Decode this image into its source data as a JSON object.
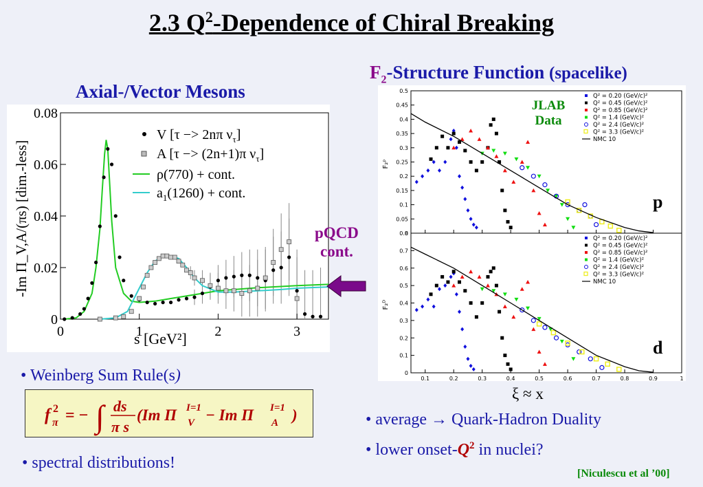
{
  "title": {
    "pre": "2.3 Q",
    "sup": "2",
    "post": "-Dependence of Chiral Breaking"
  },
  "left_heading": "Axial-/Vector Mesons",
  "right_heading": {
    "f": "F",
    "sub": "2",
    "rest": "-Structure Function",
    "paren": "(spacelike)"
  },
  "pqcd_label": {
    "line1": "pQCD",
    "line2": "cont."
  },
  "xi_label": "ξ ≈ x",
  "bullets": {
    "weinberg": "Weinberg Sum Rule(s",
    "weinberg_close": ")",
    "spectral": "spectral distributions!",
    "average": "average → Quark-Hadron Duality",
    "lower_pre": "lower onset-",
    "lower_q": "Q",
    "lower_sup": "2",
    "lower_post": " in nuclei?"
  },
  "formula": {
    "f": "f",
    "sub": "π",
    "sup": "2",
    "eq": "= −",
    "int": "∫",
    "num": "ds",
    "den": "π s",
    "body1": "(Im Π",
    "v": "V",
    "iso": "I=1",
    "minus": " − Im Π",
    "a": "A",
    "close": ")"
  },
  "citation": "[Niculescu et al ’00]",
  "chart_data": [
    {
      "type": "line",
      "xlabel": "s [GeV²]",
      "ylabel": "-Im Π_V,A/(πs) [dim.-less]",
      "xlim": [
        0,
        3.4
      ],
      "ylim": [
        0,
        0.08
      ],
      "xticks": [
        "0",
        "1",
        "2",
        "3"
      ],
      "yticks": [
        "0",
        "0.02",
        "0.04",
        "0.06",
        "0.08"
      ],
      "legend": [
        {
          "label": "V [τ −> 2nπ ν",
          "sub": "τ",
          "end": "]",
          "marker": "dot"
        },
        {
          "label": "A [τ −> (2n+1)π ν",
          "sub": "τ",
          "end": "]",
          "marker": "square"
        },
        {
          "label": "ρ(770)   + cont.",
          "marker": "green-line"
        },
        {
          "label": "a",
          "sub": "1",
          "end": "(1260) + cont.",
          "marker": "cyan-line"
        }
      ],
      "series": [
        {
          "name": "ρ(770) + cont.",
          "color": "#22cc22",
          "x": [
            0.05,
            0.2,
            0.3,
            0.4,
            0.45,
            0.5,
            0.53,
            0.56,
            0.58,
            0.6,
            0.62,
            0.65,
            0.7,
            0.8,
            0.9,
            1.0,
            1.2,
            1.5,
            1.8,
            2.0,
            2.5,
            3.0,
            3.4
          ],
          "y": [
            0,
            0.0005,
            0.003,
            0.01,
            0.02,
            0.035,
            0.05,
            0.064,
            0.0695,
            0.066,
            0.055,
            0.038,
            0.02,
            0.01,
            0.007,
            0.0065,
            0.007,
            0.0085,
            0.01,
            0.011,
            0.0122,
            0.013,
            0.0135
          ]
        },
        {
          "name": "a1(1260) + cont.",
          "color": "#33cccc",
          "x": [
            0.5,
            0.7,
            0.85,
            1.0,
            1.1,
            1.2,
            1.3,
            1.4,
            1.5,
            1.6,
            1.7,
            1.8,
            2.0,
            2.2,
            2.5,
            2.8,
            3.0,
            3.4
          ],
          "y": [
            0,
            0.0005,
            0.003,
            0.012,
            0.018,
            0.0225,
            0.0245,
            0.0245,
            0.0235,
            0.02,
            0.016,
            0.013,
            0.0105,
            0.0105,
            0.011,
            0.0115,
            0.012,
            0.0125
          ]
        },
        {
          "name": "V",
          "color": "#000000",
          "x": [
            0.05,
            0.15,
            0.25,
            0.3,
            0.35,
            0.4,
            0.45,
            0.5,
            0.55,
            0.6,
            0.65,
            0.7,
            0.75,
            0.8,
            0.9,
            1.0,
            1.1,
            1.2,
            1.3,
            1.4,
            1.5,
            1.6,
            1.7,
            1.8,
            1.9,
            2.0,
            2.1,
            2.2,
            2.3,
            2.4,
            2.5,
            2.6,
            2.7,
            2.8,
            2.9,
            3.0,
            3.1,
            3.2,
            3.3
          ],
          "y": [
            0,
            0.0005,
            0.002,
            0.004,
            0.008,
            0.014,
            0.022,
            0.036,
            0.055,
            0.066,
            0.06,
            0.04,
            0.024,
            0.015,
            0.009,
            0.0075,
            0.0065,
            0.006,
            0.0065,
            0.0065,
            0.0075,
            0.008,
            0.0085,
            0.01,
            0.0125,
            0.015,
            0.016,
            0.0165,
            0.017,
            0.017,
            0.016,
            0.015,
            0.019,
            0.02,
            0.024,
            0.011,
            0.002,
            0.001,
            0.001
          ]
        },
        {
          "name": "A",
          "color": "#666666",
          "x": [
            0.5,
            0.7,
            0.8,
            0.9,
            1.0,
            1.05,
            1.1,
            1.15,
            1.2,
            1.25,
            1.3,
            1.35,
            1.4,
            1.45,
            1.5,
            1.55,
            1.6,
            1.65,
            1.7,
            1.8,
            1.9,
            2.0,
            2.1,
            2.2,
            2.3,
            2.4,
            2.5,
            2.6,
            2.7,
            2.8,
            2.9,
            3.0
          ],
          "y": [
            0,
            0.0005,
            0.001,
            0.003,
            0.008,
            0.0125,
            0.017,
            0.02,
            0.022,
            0.0235,
            0.0245,
            0.0245,
            0.024,
            0.024,
            0.0225,
            0.021,
            0.019,
            0.018,
            0.016,
            0.015,
            0.013,
            0.012,
            0.011,
            0.011,
            0.01,
            0.011,
            0.012,
            0.016,
            0.022,
            0.027,
            0.03,
            0.008
          ]
        }
      ]
    },
    {
      "type": "scatter",
      "panel": "p",
      "ylabel": "F₂ᵖ",
      "xlim": [
        0.05,
        1.0
      ],
      "ylim": [
        0,
        0.5
      ],
      "xticks": [
        "0.1",
        "0.2",
        "0.3",
        "0.4",
        "0.5",
        "0.6",
        "0.7",
        "0.8",
        "0.9",
        "1"
      ],
      "yticks": [
        "0",
        "0.05",
        "0.1",
        "0.15",
        "0.2",
        "0.25",
        "0.3",
        "0.35",
        "0.4",
        "0.45",
        "0.5"
      ],
      "annotation": {
        "line1": "JLAB",
        "line2": "Data"
      },
      "legend": [
        "Q² = 0.20 (GeV/c)²",
        "Q² = 0.45 (GeV/c)²",
        "Q² = 0.85 (GeV/c)²",
        "Q² = 1.4 (GeV/c)²",
        "Q² = 2.4 (GeV/c)²",
        "Q² = 3.3 (GeV/c)²",
        "NMC 10"
      ],
      "series": [
        {
          "name": "Q² = 0.20 (GeV/c)²",
          "color": "#1010dd",
          "marker": "diamond",
          "x": [
            0.07,
            0.09,
            0.11,
            0.13,
            0.15,
            0.17,
            0.19,
            0.2,
            0.21,
            0.22,
            0.23,
            0.24,
            0.25,
            0.26,
            0.27,
            0.28
          ],
          "y": [
            0.18,
            0.2,
            0.22,
            0.25,
            0.22,
            0.25,
            0.33,
            0.36,
            0.3,
            0.2,
            0.16,
            0.12,
            0.08,
            0.05,
            0.03,
            0.02
          ]
        },
        {
          "name": "Q² = 0.45 (GeV/c)²",
          "color": "#000000",
          "marker": "square",
          "x": [
            0.12,
            0.14,
            0.16,
            0.18,
            0.2,
            0.22,
            0.24,
            0.26,
            0.28,
            0.3,
            0.32,
            0.33,
            0.34,
            0.35,
            0.36,
            0.37,
            0.38,
            0.39,
            0.4
          ],
          "y": [
            0.26,
            0.3,
            0.34,
            0.3,
            0.35,
            0.32,
            0.29,
            0.25,
            0.22,
            0.25,
            0.3,
            0.38,
            0.4,
            0.35,
            0.25,
            0.15,
            0.08,
            0.04,
            0.02
          ]
        },
        {
          "name": "Q² = 0.85 (GeV/c)²",
          "color": "#ee1111",
          "marker": "triangle",
          "x": [
            0.2,
            0.23,
            0.26,
            0.29,
            0.32,
            0.35,
            0.38,
            0.41,
            0.44,
            0.46,
            0.48,
            0.5,
            0.52
          ],
          "y": [
            0.3,
            0.33,
            0.36,
            0.33,
            0.3,
            0.27,
            0.22,
            0.18,
            0.25,
            0.32,
            0.15,
            0.07,
            0.03
          ]
        },
        {
          "name": "Q² = 1.4 (GeV/c)²",
          "color": "#11dd11",
          "marker": "triangle-down",
          "x": [
            0.3,
            0.34,
            0.38,
            0.42,
            0.46,
            0.5,
            0.53,
            0.56,
            0.58,
            0.6,
            0.62
          ],
          "y": [
            0.28,
            0.29,
            0.28,
            0.26,
            0.23,
            0.2,
            0.15,
            0.13,
            0.1,
            0.05,
            0.02
          ]
        },
        {
          "name": "Q² = 2.4 (GeV/c)²",
          "color": "#1010dd",
          "marker": "circle",
          "x": [
            0.44,
            0.48,
            0.52,
            0.56,
            0.6,
            0.64,
            0.66,
            0.68,
            0.7
          ],
          "y": [
            0.23,
            0.2,
            0.17,
            0.13,
            0.1,
            0.08,
            0.1,
            0.06,
            0.03
          ]
        },
        {
          "name": "Q² = 3.3 (GeV/c)²",
          "color": "#eeee22",
          "marker": "square-open",
          "x": [
            0.6,
            0.64,
            0.68,
            0.72,
            0.75,
            0.78
          ],
          "y": [
            0.11,
            0.08,
            0.06,
            0.04,
            0.025,
            0.01
          ]
        },
        {
          "name": "NMC 10",
          "color": "#000000",
          "marker": "line",
          "x": [
            0.05,
            0.1,
            0.2,
            0.3,
            0.4,
            0.5,
            0.6,
            0.7,
            0.8,
            0.85,
            0.9
          ],
          "y": [
            0.42,
            0.39,
            0.34,
            0.28,
            0.22,
            0.16,
            0.1,
            0.055,
            0.02,
            0.008,
            0.002
          ]
        }
      ]
    },
    {
      "type": "scatter",
      "panel": "d",
      "ylabel": "F₂ᴰ",
      "xlim": [
        0.05,
        1.0
      ],
      "ylim": [
        0,
        0.8
      ],
      "xticks": [
        "0.1",
        "0.2",
        "0.3",
        "0.4",
        "0.5",
        "0.6",
        "0.7",
        "0.8",
        "0.9",
        "1"
      ],
      "yticks": [
        "0",
        "0.1",
        "0.2",
        "0.3",
        "0.4",
        "0.5",
        "0.6",
        "0.7",
        "0.8"
      ],
      "legend": [
        "Q² = 0.20 (GeV/c)²",
        "Q² = 0.45 (GeV/c)²",
        "Q² = 0.85 (GeV/c)²",
        "Q² = 1.4 (GeV/c)²",
        "Q² = 2.4 (GeV/c)²",
        "Q² = 3.3 (GeV/c)²",
        "NMC 10"
      ],
      "series": [
        {
          "name": "Q² = 0.20 (GeV/c)²",
          "color": "#1010dd",
          "marker": "diamond",
          "x": [
            0.07,
            0.09,
            0.11,
            0.13,
            0.15,
            0.17,
            0.19,
            0.2,
            0.21,
            0.22,
            0.23,
            0.24,
            0.25,
            0.26,
            0.27
          ],
          "y": [
            0.36,
            0.38,
            0.42,
            0.38,
            0.48,
            0.5,
            0.55,
            0.57,
            0.45,
            0.35,
            0.25,
            0.15,
            0.08,
            0.04,
            0.02
          ]
        },
        {
          "name": "Q² = 0.45 (GeV/c)²",
          "color": "#000000",
          "marker": "square",
          "x": [
            0.12,
            0.14,
            0.16,
            0.18,
            0.2,
            0.22,
            0.24,
            0.26,
            0.28,
            0.3,
            0.32,
            0.33,
            0.34,
            0.35,
            0.36,
            0.37,
            0.38,
            0.39,
            0.4
          ],
          "y": [
            0.45,
            0.5,
            0.55,
            0.52,
            0.58,
            0.52,
            0.47,
            0.4,
            0.32,
            0.4,
            0.55,
            0.58,
            0.6,
            0.5,
            0.35,
            0.2,
            0.1,
            0.05,
            0.02
          ]
        },
        {
          "name": "Q² = 0.85 (GeV/c)²",
          "color": "#ee1111",
          "marker": "triangle",
          "x": [
            0.2,
            0.23,
            0.26,
            0.29,
            0.32,
            0.35,
            0.38,
            0.41,
            0.44,
            0.46,
            0.48,
            0.5,
            0.52
          ],
          "y": [
            0.5,
            0.55,
            0.58,
            0.55,
            0.5,
            0.45,
            0.38,
            0.32,
            0.48,
            0.52,
            0.25,
            0.12,
            0.05
          ]
        },
        {
          "name": "Q² = 1.4 (GeV/c)²",
          "color": "#11dd11",
          "marker": "triangle-down",
          "x": [
            0.3,
            0.34,
            0.38,
            0.42,
            0.46,
            0.5,
            0.54,
            0.58,
            0.62
          ],
          "y": [
            0.48,
            0.47,
            0.45,
            0.42,
            0.37,
            0.31,
            0.25,
            0.18,
            0.08
          ]
        },
        {
          "name": "Q² = 2.4 (GeV/c)²",
          "color": "#1010dd",
          "marker": "circle",
          "x": [
            0.44,
            0.48,
            0.52,
            0.56,
            0.6,
            0.64,
            0.68,
            0.72
          ],
          "y": [
            0.36,
            0.3,
            0.26,
            0.2,
            0.16,
            0.12,
            0.08,
            0.03
          ]
        },
        {
          "name": "Q² = 3.3 (GeV/c)²",
          "color": "#eeee22",
          "marker": "square-open",
          "x": [
            0.5,
            0.55,
            0.6,
            0.65,
            0.7,
            0.74,
            0.78
          ],
          "y": [
            0.28,
            0.23,
            0.17,
            0.12,
            0.08,
            0.05,
            0.02
          ]
        },
        {
          "name": "NMC 10",
          "color": "#000000",
          "marker": "line",
          "x": [
            0.05,
            0.1,
            0.2,
            0.3,
            0.4,
            0.5,
            0.6,
            0.7,
            0.8,
            0.85,
            0.9
          ],
          "y": [
            0.72,
            0.68,
            0.6,
            0.5,
            0.4,
            0.3,
            0.2,
            0.1,
            0.035,
            0.012,
            0.003
          ]
        }
      ]
    }
  ]
}
